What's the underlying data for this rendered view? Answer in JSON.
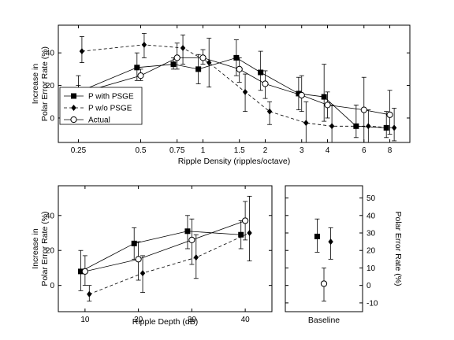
{
  "chart_data": [
    {
      "type": "line",
      "xlabel": "Ripple Density (ripples/octave)",
      "ylabel_lines": [
        "Increase in",
        "Polar Error Rate (%)"
      ],
      "x_scale": "log",
      "xlim": [
        0.2,
        10
      ],
      "ylim": [
        -15,
        57
      ],
      "xticks": [
        0.25,
        0.5,
        0.75,
        1,
        1.5,
        2,
        3,
        4,
        6,
        8
      ],
      "xtick_labels": [
        "0.25",
        "0.5",
        "0.75",
        "1",
        "1.5",
        "2",
        "3",
        "4",
        "6",
        "8"
      ],
      "yticks": [
        0,
        20,
        40
      ],
      "legend_position": "bottom-left",
      "series": [
        {
          "name": "P with PSGE",
          "marker": "square-filled",
          "line": "solid",
          "points": [
            {
              "x": 0.25,
              "y": 16,
              "lo": 10,
              "hi": 26
            },
            {
              "x": 0.48,
              "y": 31,
              "lo": 23,
              "hi": 40
            },
            {
              "x": 0.72,
              "y": 33,
              "lo": 30,
              "hi": 37
            },
            {
              "x": 0.95,
              "y": 30,
              "lo": 21,
              "hi": 39
            },
            {
              "x": 1.45,
              "y": 37,
              "lo": 26,
              "hi": 48
            },
            {
              "x": 1.9,
              "y": 28,
              "lo": 17,
              "hi": 41
            },
            {
              "x": 2.9,
              "y": 15,
              "lo": 5,
              "hi": 25
            },
            {
              "x": 3.85,
              "y": 13,
              "lo": -2,
              "hi": 33
            },
            {
              "x": 5.5,
              "y": -5,
              "lo": -12,
              "hi": 8
            },
            {
              "x": 7.7,
              "y": -6,
              "lo": -12,
              "hi": 4
            }
          ]
        },
        {
          "name": "P w/o PSGE",
          "marker": "diamond-filled",
          "line": "dashed",
          "points": [
            {
              "x": 0.26,
              "y": 41,
              "lo": 34,
              "hi": 50
            },
            {
              "x": 0.52,
              "y": 45,
              "lo": 37,
              "hi": 52
            },
            {
              "x": 0.8,
              "y": 43,
              "lo": 33,
              "hi": 51
            },
            {
              "x": 1.07,
              "y": 34,
              "lo": 19,
              "hi": 49
            },
            {
              "x": 1.6,
              "y": 16,
              "lo": 4,
              "hi": 27
            },
            {
              "x": 2.1,
              "y": 4,
              "lo": -4,
              "hi": 10
            },
            {
              "x": 3.15,
              "y": -3,
              "lo": -15,
              "hi": 10
            },
            {
              "x": 4.2,
              "y": -5,
              "lo": -15,
              "hi": 8
            },
            {
              "x": 6.3,
              "y": -5,
              "lo": -15,
              "hi": 5
            },
            {
              "x": 8.4,
              "y": -6,
              "lo": -14,
              "hi": 6
            }
          ]
        },
        {
          "name": "Actual",
          "marker": "circle-open",
          "line": "solid",
          "points": [
            {
              "x": 0.25,
              "y": 15,
              "lo": 10,
              "hi": 20
            },
            {
              "x": 0.5,
              "y": 26,
              "lo": 23,
              "hi": 30
            },
            {
              "x": 0.75,
              "y": 37,
              "lo": 30,
              "hi": 46
            },
            {
              "x": 1.0,
              "y": 37,
              "lo": 33,
              "hi": 42
            },
            {
              "x": 1.5,
              "y": 30,
              "lo": 22,
              "hi": 37
            },
            {
              "x": 2.0,
              "y": 21,
              "lo": 12,
              "hi": 29
            },
            {
              "x": 3.0,
              "y": 14,
              "lo": 4,
              "hi": 26
            },
            {
              "x": 4.0,
              "y": 8,
              "lo": 0,
              "hi": 16
            },
            {
              "x": 6.0,
              "y": 5,
              "lo": -15,
              "hi": 25
            },
            {
              "x": 8.0,
              "y": 2,
              "lo": -10,
              "hi": 17
            }
          ]
        }
      ]
    },
    {
      "type": "line",
      "xlabel": "Ripple Depth (dB)",
      "ylabel_lines": [
        "Increase in",
        "Polar Error Rate (%)"
      ],
      "xlim": [
        5,
        45
      ],
      "ylim": [
        -15,
        57
      ],
      "xticks": [
        10,
        20,
        30,
        40
      ],
      "xtick_labels": [
        "10",
        "20",
        "30",
        "40"
      ],
      "yticks": [
        0,
        20,
        40
      ],
      "series": [
        {
          "name": "P with PSGE",
          "marker": "square-filled",
          "line": "solid",
          "points": [
            {
              "x": 9.2,
              "y": 8,
              "lo": -3,
              "hi": 20
            },
            {
              "x": 19.2,
              "y": 24,
              "lo": 15,
              "hi": 33
            },
            {
              "x": 29.2,
              "y": 31,
              "lo": 21,
              "hi": 40
            },
            {
              "x": 39.2,
              "y": 29,
              "lo": 21,
              "hi": 37
            }
          ]
        },
        {
          "name": "P w/o PSGE",
          "marker": "diamond-filled",
          "line": "dashed",
          "points": [
            {
              "x": 10.8,
              "y": -5,
              "lo": -9,
              "hi": 0
            },
            {
              "x": 20.8,
              "y": 7,
              "lo": -4,
              "hi": 17
            },
            {
              "x": 30.8,
              "y": 16,
              "lo": 4,
              "hi": 29
            },
            {
              "x": 40.8,
              "y": 30,
              "lo": 14,
              "hi": 51
            }
          ]
        },
        {
          "name": "Actual",
          "marker": "circle-open",
          "line": "solid",
          "points": [
            {
              "x": 10,
              "y": 8,
              "lo": 0,
              "hi": 17
            },
            {
              "x": 20,
              "y": 15,
              "lo": 3,
              "hi": 25
            },
            {
              "x": 30,
              "y": 26,
              "lo": 12,
              "hi": 38
            },
            {
              "x": 40,
              "y": 37,
              "lo": 26,
              "hi": 48
            }
          ]
        }
      ]
    },
    {
      "type": "scatter",
      "xlabel": "Baseline",
      "ylabel": "Polar Error Rate (%)",
      "y_axis_side": "right",
      "xlim": [
        0,
        4
      ],
      "ylim": [
        -15,
        57
      ],
      "yticks": [
        -10,
        0,
        10,
        20,
        30,
        40,
        50
      ],
      "series": [
        {
          "name": "P with PSGE",
          "marker": "square-filled",
          "points": [
            {
              "x": 1.65,
              "y": 28,
              "lo": 19,
              "hi": 38
            }
          ]
        },
        {
          "name": "P w/o PSGE",
          "marker": "diamond-filled",
          "points": [
            {
              "x": 2.35,
              "y": 25,
              "lo": 15,
              "hi": 33
            }
          ]
        },
        {
          "name": "Actual",
          "marker": "circle-open",
          "points": [
            {
              "x": 2.0,
              "y": 1,
              "lo": -9,
              "hi": 10
            }
          ]
        }
      ]
    }
  ]
}
